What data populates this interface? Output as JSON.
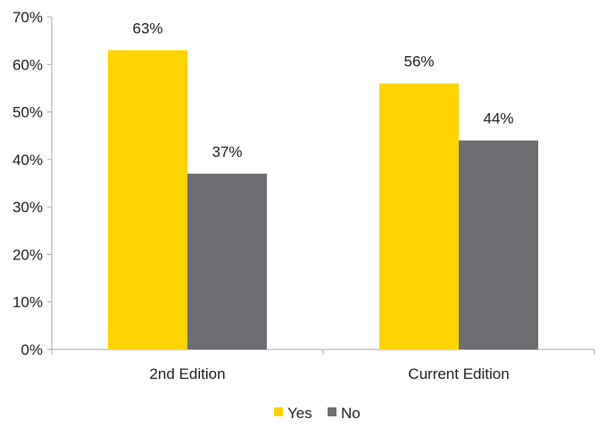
{
  "chart_data": {
    "type": "bar",
    "categories": [
      "2nd Edition",
      "Current Edition"
    ],
    "series": [
      {
        "name": "Yes",
        "values": [
          63,
          56
        ],
        "color": "#FFD200"
      },
      {
        "name": "No",
        "values": [
          37,
          44
        ],
        "color": "#6D6E71"
      }
    ],
    "ylim": [
      0,
      70
    ],
    "yticks": [
      0,
      10,
      20,
      30,
      40,
      50,
      60,
      70
    ],
    "ytick_labels": [
      "0%",
      "10%",
      "20%",
      "30%",
      "40%",
      "50%",
      "60%",
      "70%"
    ],
    "data_labels": [
      [
        "63%",
        "56%"
      ],
      [
        "37%",
        "44%"
      ]
    ],
    "grid": false,
    "legend": "bottom-center",
    "axis_color": "#A6A6A6"
  }
}
